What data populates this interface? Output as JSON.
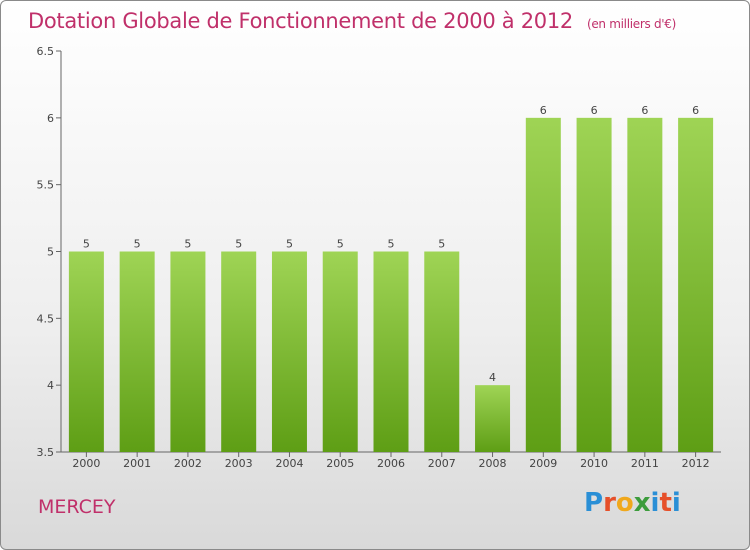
{
  "header": {
    "title": "Dotation Globale de Fonctionnement de 2000 à 2012",
    "unit": "(en milliers d'€)"
  },
  "footer": {
    "commune": "MERCEY",
    "brand": "Proxiti"
  },
  "colors": {
    "title": "#c0306a",
    "bar_top": "#9fd455",
    "bar_bottom": "#5e9e15",
    "axis": "#555555"
  },
  "chart_data": {
    "type": "bar",
    "categories": [
      "2000",
      "2001",
      "2002",
      "2003",
      "2004",
      "2005",
      "2006",
      "2007",
      "2008",
      "2009",
      "2010",
      "2011",
      "2012"
    ],
    "values": [
      5,
      5,
      5,
      5,
      5,
      5,
      5,
      5,
      4,
      6,
      6,
      6,
      6
    ],
    "data_labels": [
      "5",
      "5",
      "5",
      "5",
      "5",
      "5",
      "5",
      "5",
      "4",
      "6",
      "6",
      "6",
      "6"
    ],
    "y_ticks": [
      "3.5",
      "4",
      "4.5",
      "5",
      "5.5",
      "6",
      "6.5"
    ],
    "ylim": [
      3.5,
      6.5
    ],
    "grid": false,
    "legend": "none"
  }
}
